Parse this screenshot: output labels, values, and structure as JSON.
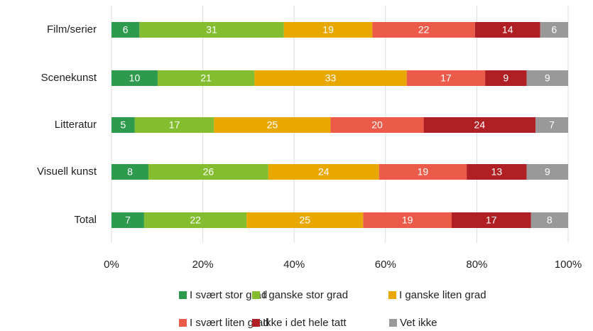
{
  "chart_data": {
    "type": "stacked-barh",
    "normalize": true,
    "categories": [
      "Film/serier",
      "Scenekunst",
      "Litteratur",
      "Visuell kunst",
      "Total"
    ],
    "series": [
      {
        "name": "I svært stor grad",
        "color": "#2e9a4e",
        "values": [
          6,
          10,
          5,
          8,
          7
        ]
      },
      {
        "name": "I ganske stor grad",
        "color": "#84bd2f",
        "values": [
          31,
          21,
          17,
          26,
          22
        ]
      },
      {
        "name": "I ganske liten grad",
        "color": "#e9a800",
        "values": [
          19,
          33,
          25,
          24,
          25
        ]
      },
      {
        "name": "I svært liten grad",
        "color": "#ec5b4a",
        "values": [
          22,
          17,
          20,
          19,
          19
        ]
      },
      {
        "name": "Ikke i det hele tatt",
        "color": "#b01f24",
        "values": [
          14,
          9,
          24,
          13,
          17
        ]
      },
      {
        "name": "Vet ikke",
        "color": "#999999",
        "values": [
          6,
          9,
          7,
          9,
          8
        ]
      }
    ],
    "xlim": [
      0,
      100
    ],
    "xticks": [
      {
        "value": 0,
        "label": "0%"
      },
      {
        "value": 20,
        "label": "20%"
      },
      {
        "value": 40,
        "label": "40%"
      },
      {
        "value": 60,
        "label": "60%"
      },
      {
        "value": 80,
        "label": "80%"
      },
      {
        "value": 100,
        "label": "100%"
      }
    ],
    "grid": true
  }
}
